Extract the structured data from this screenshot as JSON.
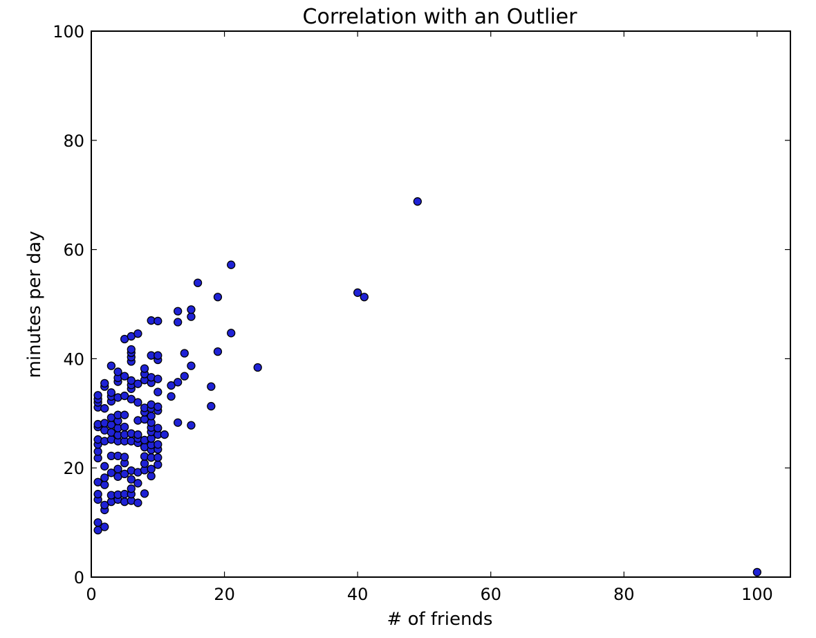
{
  "chart_data": {
    "type": "scatter",
    "title": "Correlation with an Outlier",
    "xlabel": "# of friends",
    "ylabel": "minutes per day",
    "xlim": [
      0,
      105
    ],
    "ylim": [
      0,
      100
    ],
    "xticks": [
      0,
      20,
      40,
      60,
      80,
      100
    ],
    "yticks": [
      0,
      20,
      40,
      60,
      80,
      100
    ],
    "xtick_labels": [
      "0",
      "20",
      "40",
      "60",
      "80",
      "100"
    ],
    "ytick_labels": [
      "0",
      "20",
      "40",
      "60",
      "80",
      "100"
    ],
    "grid": false,
    "marker_color": "#1f22d6",
    "points": [
      [
        1,
        8.6
      ],
      [
        1,
        10.0
      ],
      [
        1,
        14.2
      ],
      [
        1,
        15.2
      ],
      [
        1,
        17.4
      ],
      [
        1,
        21.8
      ],
      [
        1,
        23.0
      ],
      [
        1,
        24.3
      ],
      [
        1,
        25.2
      ],
      [
        1,
        27.5
      ],
      [
        1,
        28.0
      ],
      [
        1,
        31.1
      ],
      [
        1,
        32.0
      ],
      [
        1,
        32.6
      ],
      [
        1,
        33.3
      ],
      [
        2,
        9.2
      ],
      [
        2,
        12.3
      ],
      [
        2,
        13.2
      ],
      [
        2,
        16.9
      ],
      [
        2,
        18.2
      ],
      [
        2,
        20.3
      ],
      [
        2,
        24.9
      ],
      [
        2,
        26.9
      ],
      [
        2,
        28.2
      ],
      [
        2,
        30.9
      ],
      [
        2,
        34.9
      ],
      [
        2,
        35.5
      ],
      [
        3,
        13.8
      ],
      [
        3,
        15.0
      ],
      [
        3,
        19.1
      ],
      [
        3,
        22.2
      ],
      [
        3,
        25.2
      ],
      [
        3,
        26.5
      ],
      [
        3,
        27.9
      ],
      [
        3,
        29.2
      ],
      [
        3,
        32.2
      ],
      [
        3,
        33.1
      ],
      [
        3,
        33.8
      ],
      [
        3,
        38.7
      ],
      [
        4,
        14.2
      ],
      [
        4,
        15.1
      ],
      [
        4,
        18.4
      ],
      [
        4,
        19.8
      ],
      [
        4,
        22.2
      ],
      [
        4,
        24.9
      ],
      [
        4,
        26.0
      ],
      [
        4,
        27.3
      ],
      [
        4,
        28.6
      ],
      [
        4,
        29.7
      ],
      [
        4,
        32.9
      ],
      [
        4,
        35.8
      ],
      [
        4,
        36.5
      ],
      [
        4,
        37.6
      ],
      [
        5,
        13.8
      ],
      [
        5,
        15.2
      ],
      [
        5,
        18.9
      ],
      [
        5,
        20.9
      ],
      [
        5,
        22.0
      ],
      [
        5,
        24.9
      ],
      [
        5,
        26.1
      ],
      [
        5,
        27.5
      ],
      [
        5,
        29.7
      ],
      [
        5,
        33.2
      ],
      [
        5,
        36.8
      ],
      [
        5,
        43.6
      ],
      [
        6,
        14.0
      ],
      [
        6,
        15.2
      ],
      [
        6,
        16.2
      ],
      [
        6,
        17.9
      ],
      [
        6,
        19.5
      ],
      [
        6,
        24.9
      ],
      [
        6,
        26.3
      ],
      [
        6,
        32.6
      ],
      [
        6,
        34.5
      ],
      [
        6,
        35.2
      ],
      [
        6,
        36.0
      ],
      [
        6,
        39.5
      ],
      [
        6,
        40.3
      ],
      [
        6,
        41.1
      ],
      [
        6,
        41.7
      ],
      [
        6,
        44.1
      ],
      [
        7,
        13.6
      ],
      [
        7,
        17.2
      ],
      [
        7,
        19.2
      ],
      [
        7,
        24.6
      ],
      [
        7,
        25.4
      ],
      [
        7,
        26.1
      ],
      [
        7,
        28.7
      ],
      [
        7,
        32.0
      ],
      [
        7,
        35.4
      ],
      [
        7,
        44.6
      ],
      [
        8,
        15.3
      ],
      [
        8,
        19.6
      ],
      [
        8,
        20.8
      ],
      [
        8,
        22.1
      ],
      [
        8,
        23.8
      ],
      [
        8,
        25.1
      ],
      [
        8,
        28.9
      ],
      [
        8,
        30.2
      ],
      [
        8,
        31.0
      ],
      [
        8,
        36.1
      ],
      [
        8,
        37.2
      ],
      [
        8,
        38.2
      ],
      [
        9,
        18.5
      ],
      [
        9,
        19.8
      ],
      [
        9,
        21.9
      ],
      [
        9,
        23.3
      ],
      [
        9,
        24.2
      ],
      [
        9,
        25.4
      ],
      [
        9,
        26.6
      ],
      [
        9,
        27.4
      ],
      [
        9,
        28.3
      ],
      [
        9,
        29.5
      ],
      [
        9,
        30.9
      ],
      [
        9,
        31.6
      ],
      [
        9,
        35.6
      ],
      [
        9,
        36.6
      ],
      [
        9,
        40.6
      ],
      [
        9,
        47.0
      ],
      [
        10,
        20.6
      ],
      [
        10,
        21.9
      ],
      [
        10,
        23.4
      ],
      [
        10,
        24.3
      ],
      [
        10,
        26.1
      ],
      [
        10,
        27.3
      ],
      [
        10,
        30.5
      ],
      [
        10,
        31.2
      ],
      [
        10,
        33.9
      ],
      [
        10,
        36.3
      ],
      [
        10,
        39.8
      ],
      [
        10,
        40.6
      ],
      [
        10,
        46.9
      ],
      [
        11,
        26.1
      ],
      [
        12,
        33.1
      ],
      [
        12,
        35.1
      ],
      [
        13,
        28.3
      ],
      [
        13,
        35.7
      ],
      [
        13,
        46.7
      ],
      [
        13,
        48.7
      ],
      [
        14,
        36.8
      ],
      [
        14,
        41.0
      ],
      [
        15,
        27.8
      ],
      [
        15,
        38.7
      ],
      [
        15,
        47.7
      ],
      [
        15,
        49.0
      ],
      [
        16,
        53.9
      ],
      [
        18,
        31.3
      ],
      [
        18,
        34.9
      ],
      [
        19,
        41.3
      ],
      [
        19,
        51.3
      ],
      [
        21,
        44.7
      ],
      [
        21,
        57.2
      ],
      [
        25,
        38.4
      ],
      [
        40,
        52.1
      ],
      [
        41,
        51.3
      ],
      [
        49,
        68.8
      ],
      [
        100,
        0.9
      ]
    ]
  }
}
